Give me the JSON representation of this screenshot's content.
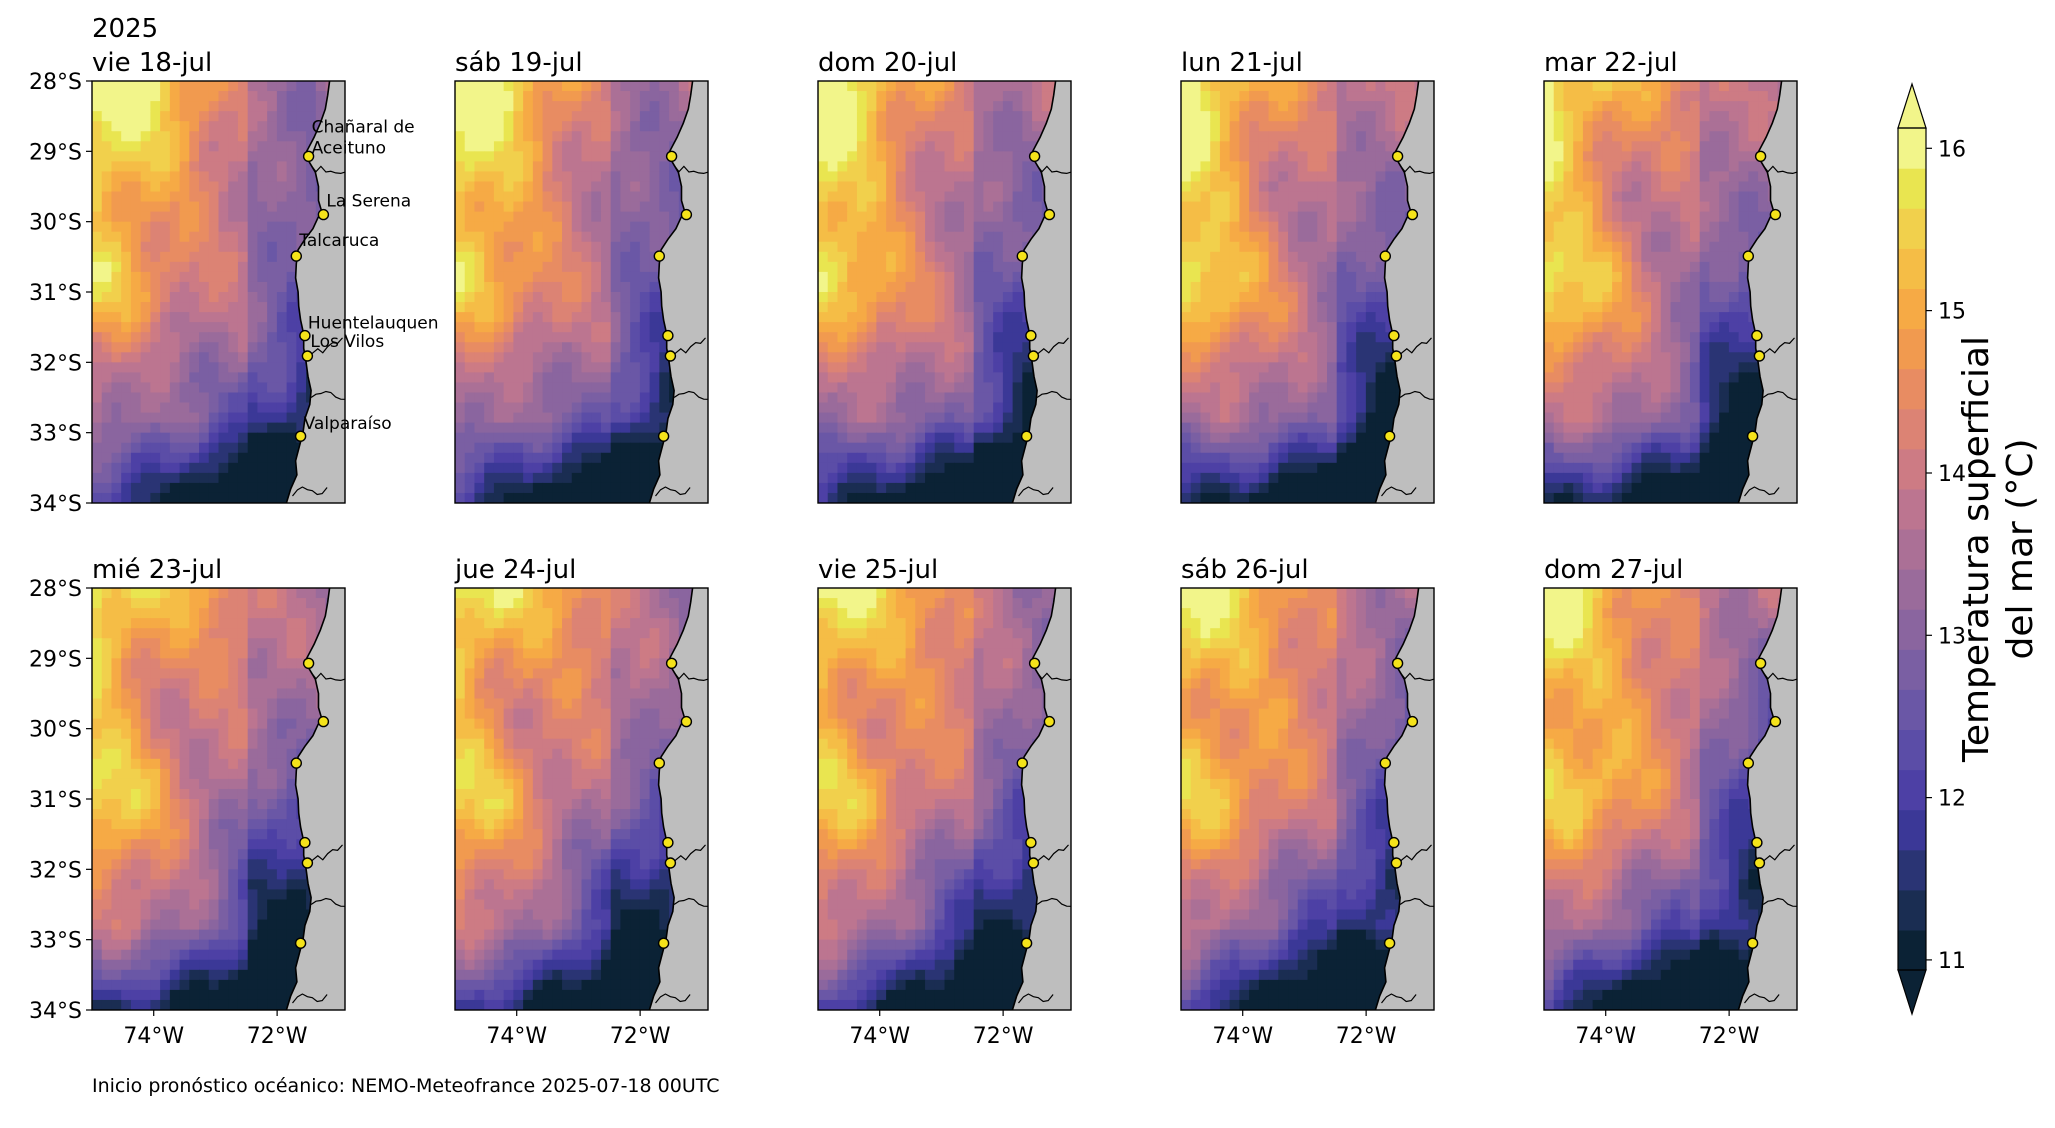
{
  "year": "2025",
  "footer": "Inicio pronóstico océanico: NEMO-Meteofrance 2025-07-18 00UTC",
  "colorbar": {
    "label_line1": "Temperatura superficial",
    "label_line2": "del mar (°C)",
    "ticks": [
      "16",
      "15",
      "14",
      "13",
      "12",
      "11"
    ],
    "range": [
      11,
      16
    ],
    "palette": [
      "#0b2235",
      "#1a2d52",
      "#2a3474",
      "#3b3897",
      "#4d40a5",
      "#5b4da7",
      "#6a57a6",
      "#7a5fa3",
      "#8a659f",
      "#9a6b9b",
      "#ab7096",
      "#bc7590",
      "#cd7b84",
      "#dc8374",
      "#e88c62",
      "#f19a4f",
      "#f6aa45",
      "#f5bd46",
      "#f1d04c",
      "#e9e550",
      "#f2f58a"
    ]
  },
  "axes": {
    "lat_labels": [
      "28°S",
      "29°S",
      "30°S",
      "31°S",
      "32°S",
      "33°S",
      "34°S"
    ],
    "lon_labels": [
      "74°W",
      "72°W"
    ]
  },
  "panels": [
    {
      "title": "vie 18-jul",
      "seed": 1
    },
    {
      "title": "sáb 19-jul",
      "seed": 2
    },
    {
      "title": "dom 20-jul",
      "seed": 3
    },
    {
      "title": "lun 21-jul",
      "seed": 4
    },
    {
      "title": "mar 22-jul",
      "seed": 5
    },
    {
      "title": "mié 23-jul",
      "seed": 6
    },
    {
      "title": "jue 24-jul",
      "seed": 7
    },
    {
      "title": "vie 25-jul",
      "seed": 8
    },
    {
      "title": "sáb 26-jul",
      "seed": 9
    },
    {
      "title": "dom 27-jul",
      "seed": 10
    }
  ],
  "cities": [
    {
      "name": "Chañaral de Aceituno",
      "lat": -29.07,
      "lon": -71.49
    },
    {
      "name": "La Serena",
      "lat": -29.9,
      "lon": -71.25
    },
    {
      "name": "Talcaruca",
      "lat": -30.49,
      "lon": -71.69
    },
    {
      "name": "Huentelauquen",
      "lat": -31.62,
      "lon": -71.55
    },
    {
      "name": "Los Vilos",
      "lat": -31.91,
      "lon": -71.51
    },
    {
      "name": "Valparaíso",
      "lat": -33.05,
      "lon": -71.62
    }
  ],
  "city_labels": [
    {
      "line1": "Chañaral de",
      "line2": "Aceituno"
    },
    {
      "line1": "La Serena"
    },
    {
      "line1": "Talcaruca"
    },
    {
      "line1": "Huentelauquen"
    },
    {
      "line1": "Los Vilos"
    },
    {
      "line1": "Valparaíso"
    }
  ],
  "colors": {
    "land": "#bebebe",
    "city_marker": "#f5e31a",
    "coast": "#000000"
  }
}
